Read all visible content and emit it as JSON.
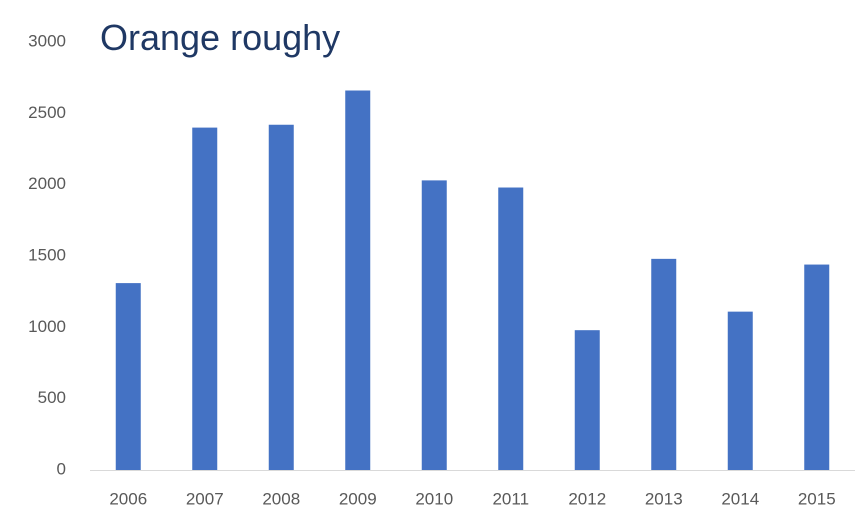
{
  "chart_data": {
    "type": "bar",
    "title": "Orange roughy",
    "categories": [
      "2006",
      "2007",
      "2008",
      "2009",
      "2010",
      "2011",
      "2012",
      "2013",
      "2014",
      "2015"
    ],
    "values": [
      1310,
      2400,
      2420,
      2660,
      2030,
      1980,
      980,
      1480,
      1110,
      1440
    ],
    "color": "#4472c4",
    "ylim": [
      0,
      3000
    ],
    "yticks": [
      0,
      500,
      1000,
      1500,
      2000,
      2500,
      3000
    ],
    "grid": false
  }
}
